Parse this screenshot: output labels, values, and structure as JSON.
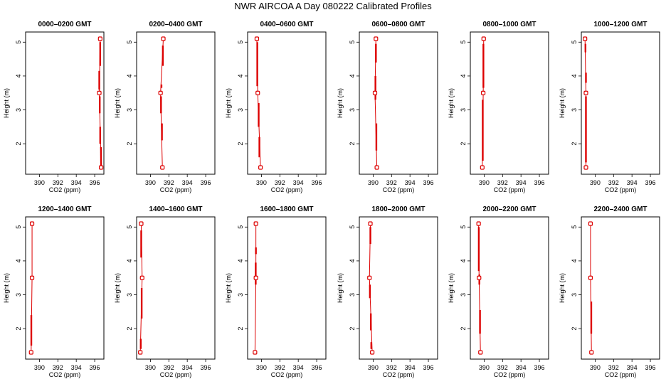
{
  "title": "NWR AIRCOA A  Day 080222  Calibrated Profiles",
  "colors": {
    "profile": "#dd0000",
    "axis": "#000000",
    "background": "#ffffff"
  },
  "chart_data": [
    {
      "type": "line",
      "title": "0000–0200 GMT",
      "xlabel": "CO2 (ppm)",
      "ylabel": "Height (m)",
      "xlim": [
        388.5,
        397
      ],
      "ylim": [
        1.1,
        5.3
      ],
      "xticks": [
        390,
        392,
        394,
        396
      ],
      "yticks": [
        2,
        3,
        4,
        5
      ],
      "points": [
        {
          "x": 396.7,
          "y": 1.3
        },
        {
          "x": 396.5,
          "y": 3.5
        },
        {
          "x": 396.6,
          "y": 5.1
        }
      ],
      "segments": [
        {
          "x": [
            396.7,
            396.68
          ],
          "y": [
            1.3,
            1.9
          ]
        },
        {
          "x": 396.6,
          "y": [
            2.0,
            2.5
          ]
        },
        {
          "x": 396.55,
          "y": [
            2.9,
            3.4
          ]
        },
        {
          "x": 396.5,
          "y": [
            3.6,
            4.15
          ]
        },
        {
          "x": 396.6,
          "y": [
            4.3,
            5.0
          ]
        }
      ]
    },
    {
      "type": "line",
      "title": "0200–0400 GMT",
      "xlabel": "CO2 (ppm)",
      "ylabel": "Height (m)",
      "xlim": [
        388.5,
        397
      ],
      "ylim": [
        1.1,
        5.3
      ],
      "xticks": [
        390,
        392,
        394,
        396
      ],
      "yticks": [
        2,
        3,
        4,
        5
      ],
      "points": [
        {
          "x": 391.3,
          "y": 1.3
        },
        {
          "x": 391.1,
          "y": 3.5
        },
        {
          "x": 391.4,
          "y": 5.1
        }
      ],
      "segments": [
        {
          "x": 391.25,
          "y": [
            2.1,
            2.6
          ]
        },
        {
          "x": 391.15,
          "y": [
            2.9,
            3.4
          ]
        },
        {
          "x": 391.2,
          "y": [
            3.65,
            3.75
          ]
        },
        {
          "x": 391.35,
          "y": [
            4.3,
            4.9
          ]
        }
      ]
    },
    {
      "type": "line",
      "title": "0400–0600 GMT",
      "xlabel": "CO2 (ppm)",
      "ylabel": "Height (m)",
      "xlim": [
        388.5,
        397
      ],
      "ylim": [
        1.1,
        5.3
      ],
      "xticks": [
        390,
        392,
        394,
        396
      ],
      "yticks": [
        2,
        3,
        4,
        5
      ],
      "points": [
        {
          "x": 389.9,
          "y": 1.3
        },
        {
          "x": 389.6,
          "y": 3.5
        },
        {
          "x": 389.5,
          "y": 5.1
        }
      ],
      "segments": [
        {
          "x": 389.78,
          "y": [
            1.6,
            2.2
          ]
        },
        {
          "x": 389.7,
          "y": [
            2.5,
            3.2
          ]
        },
        {
          "x": 389.55,
          "y": [
            3.7,
            5.0
          ]
        }
      ]
    },
    {
      "type": "line",
      "title": "0600–0800 GMT",
      "xlabel": "CO2 (ppm)",
      "ylabel": "Height (m)",
      "xlim": [
        388.5,
        397
      ],
      "ylim": [
        1.1,
        5.3
      ],
      "xticks": [
        390,
        392,
        394,
        396
      ],
      "yticks": [
        2,
        3,
        4,
        5
      ],
      "points": [
        {
          "x": 390.4,
          "y": 1.3
        },
        {
          "x": 390.2,
          "y": 3.5
        },
        {
          "x": 390.3,
          "y": 5.1
        }
      ],
      "segments": [
        {
          "x": 390.35,
          "y": [
            1.8,
            2.6
          ]
        },
        {
          "x": 390.25,
          "y": [
            3.3,
            4.0
          ]
        },
        {
          "x": 390.3,
          "y": [
            4.4,
            4.95
          ]
        }
      ]
    },
    {
      "type": "line",
      "title": "0800–1000 GMT",
      "xlabel": "CO2 (ppm)",
      "ylabel": "Height (m)",
      "xlim": [
        388.5,
        397
      ],
      "ylim": [
        1.1,
        5.3
      ],
      "xticks": [
        390,
        392,
        394,
        396
      ],
      "yticks": [
        2,
        3,
        4,
        5
      ],
      "points": [
        {
          "x": 389.8,
          "y": 1.3
        },
        {
          "x": 389.9,
          "y": 3.5
        },
        {
          "x": 389.95,
          "y": 5.1
        }
      ],
      "segments": [
        {
          "x": 389.85,
          "y": [
            1.5,
            3.3
          ]
        },
        {
          "x": 389.92,
          "y": [
            3.65,
            4.95
          ]
        }
      ]
    },
    {
      "type": "line",
      "title": "1000–1200 GMT",
      "xlabel": "CO2 (ppm)",
      "ylabel": "Height (m)",
      "xlim": [
        388.5,
        397
      ],
      "ylim": [
        1.1,
        5.3
      ],
      "xticks": [
        390,
        392,
        394,
        396
      ],
      "yticks": [
        2,
        3,
        4,
        5
      ],
      "points": [
        {
          "x": 389.0,
          "y": 1.3
        },
        {
          "x": 389.0,
          "y": 3.5
        },
        {
          "x": 388.9,
          "y": 5.1
        }
      ],
      "segments": [
        {
          "x": 389.0,
          "y": [
            1.45,
            3.4
          ]
        },
        {
          "x": 389.0,
          "y": [
            3.8,
            4.1
          ]
        },
        {
          "x": 388.95,
          "y": [
            4.7,
            4.95
          ]
        }
      ]
    },
    {
      "type": "line",
      "title": "1200–1400 GMT",
      "xlabel": "CO2 (ppm)",
      "ylabel": "Height (m)",
      "xlim": [
        388.5,
        397
      ],
      "ylim": [
        1.1,
        5.3
      ],
      "xticks": [
        390,
        392,
        394,
        396
      ],
      "yticks": [
        2,
        3,
        4,
        5
      ],
      "points": [
        {
          "x": 389.1,
          "y": 1.3
        },
        {
          "x": 389.2,
          "y": 3.5
        },
        {
          "x": 389.2,
          "y": 5.1
        }
      ],
      "segments": [
        {
          "x": 389.12,
          "y": [
            1.5,
            2.4
          ]
        }
      ]
    },
    {
      "type": "line",
      "title": "1400–1600 GMT",
      "xlabel": "CO2 (ppm)",
      "ylabel": "Height (m)",
      "xlim": [
        388.5,
        397
      ],
      "ylim": [
        1.1,
        5.3
      ],
      "xticks": [
        390,
        392,
        394,
        396
      ],
      "yticks": [
        2,
        3,
        4,
        5
      ],
      "points": [
        {
          "x": 388.9,
          "y": 1.3
        },
        {
          "x": 389.1,
          "y": 3.5
        },
        {
          "x": 389.0,
          "y": 5.1
        }
      ],
      "segments": [
        {
          "x": 388.95,
          "y": [
            1.4,
            1.7
          ]
        },
        {
          "x": 389.05,
          "y": [
            2.3,
            3.2
          ]
        },
        {
          "x": 389.0,
          "y": [
            4.1,
            4.9
          ]
        }
      ]
    },
    {
      "type": "line",
      "title": "1600–1800 GMT",
      "xlabel": "CO2 (ppm)",
      "ylabel": "Height (m)",
      "xlim": [
        388.5,
        397
      ],
      "ylim": [
        1.1,
        5.3
      ],
      "xticks": [
        390,
        392,
        394,
        396
      ],
      "yticks": [
        2,
        3,
        4,
        5
      ],
      "points": [
        {
          "x": 389.3,
          "y": 1.3
        },
        {
          "x": 389.4,
          "y": 3.5
        },
        {
          "x": 389.4,
          "y": 5.1
        }
      ],
      "segments": [
        {
          "x": 389.38,
          "y": [
            3.3,
            3.95
          ]
        },
        {
          "x": 389.4,
          "y": [
            4.2,
            4.4
          ]
        }
      ]
    },
    {
      "type": "line",
      "title": "1800–2000 GMT",
      "xlabel": "CO2 (ppm)",
      "ylabel": "Height (m)",
      "xlim": [
        388.5,
        397
      ],
      "ylim": [
        1.1,
        5.3
      ],
      "xticks": [
        390,
        392,
        394,
        396
      ],
      "yticks": [
        2,
        3,
        4,
        5
      ],
      "points": [
        {
          "x": 389.9,
          "y": 1.3
        },
        {
          "x": 389.6,
          "y": 3.5
        },
        {
          "x": 389.7,
          "y": 5.1
        }
      ],
      "segments": [
        {
          "x": 389.8,
          "y": [
            1.4,
            1.6
          ]
        },
        {
          "x": 389.75,
          "y": [
            1.95,
            2.45
          ]
        },
        {
          "x": 389.65,
          "y": [
            2.9,
            3.3
          ]
        },
        {
          "x": 389.7,
          "y": [
            4.5,
            5.0
          ]
        }
      ]
    },
    {
      "type": "line",
      "title": "2000–2200 GMT",
      "xlabel": "CO2 (ppm)",
      "ylabel": "Height (m)",
      "xlim": [
        388.5,
        397
      ],
      "ylim": [
        1.1,
        5.3
      ],
      "xticks": [
        390,
        392,
        394,
        396
      ],
      "yticks": [
        2,
        3,
        4,
        5
      ],
      "points": [
        {
          "x": 389.6,
          "y": 1.3
        },
        {
          "x": 389.45,
          "y": 3.5
        },
        {
          "x": 389.4,
          "y": 5.1
        }
      ],
      "segments": [
        {
          "x": 389.55,
          "y": [
            1.85,
            2.55
          ]
        },
        {
          "x": 389.48,
          "y": [
            3.3,
            3.6
          ]
        },
        {
          "x": 389.42,
          "y": [
            3.7,
            5.0
          ]
        }
      ]
    },
    {
      "type": "line",
      "title": "2200–2400 GMT",
      "xlabel": "CO2 (ppm)",
      "ylabel": "Height (m)",
      "xlim": [
        388.5,
        397
      ],
      "ylim": [
        1.1,
        5.3
      ],
      "xticks": [
        390,
        392,
        394,
        396
      ],
      "yticks": [
        2,
        3,
        4,
        5
      ],
      "points": [
        {
          "x": 389.6,
          "y": 1.3
        },
        {
          "x": 389.5,
          "y": 3.5
        },
        {
          "x": 389.5,
          "y": 5.1
        }
      ],
      "segments": [
        {
          "x": 389.58,
          "y": [
            1.85,
            2.8
          ]
        }
      ]
    }
  ]
}
